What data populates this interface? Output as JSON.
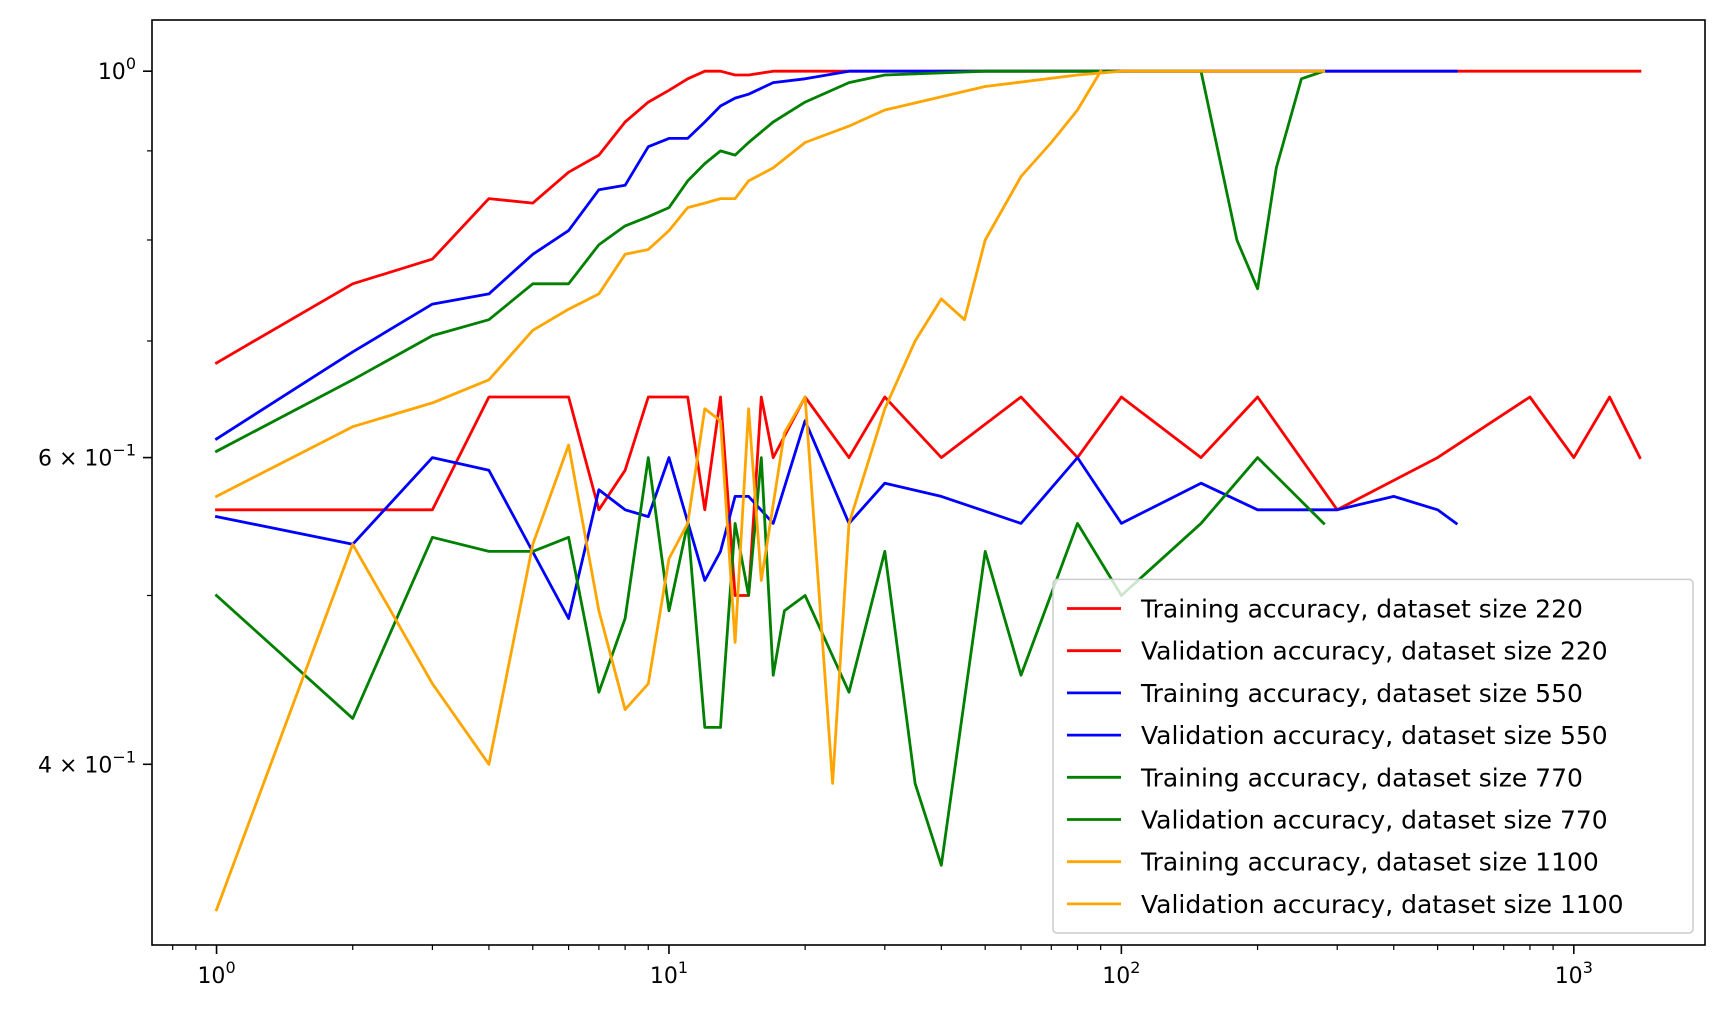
{
  "chart_data": {
    "type": "line",
    "title": "",
    "xlabel": "",
    "ylabel": "",
    "x_scale": "log",
    "y_scale": "log",
    "xlim": [
      0.72,
      1950
    ],
    "ylim": [
      0.315,
      1.07
    ],
    "grid": false,
    "legend_position": "lower right",
    "x_ticks": [
      {
        "value": 1,
        "label_base": "10",
        "label_exp": "0"
      },
      {
        "value": 10,
        "label_base": "10",
        "label_exp": "1"
      },
      {
        "value": 100,
        "label_base": "10",
        "label_exp": "2"
      },
      {
        "value": 1000,
        "label_base": "10",
        "label_exp": "3"
      }
    ],
    "y_ticks": [
      {
        "value": 1.0,
        "label_base": "10",
        "label_exp": "0",
        "label_mult": ""
      },
      {
        "value": 0.6,
        "label_base": "10",
        "label_exp": "−1",
        "label_mult": "6 × "
      },
      {
        "value": 0.4,
        "label_base": "10",
        "label_exp": "−1",
        "label_mult": "4 × "
      }
    ],
    "series": [
      {
        "name": "Training accuracy, dataset size 220",
        "color": "#ff0000",
        "x": [
          1,
          2,
          3,
          4,
          5,
          6,
          7,
          8,
          9,
          10,
          11,
          12,
          13,
          14,
          15,
          17,
          20,
          25,
          30,
          50,
          100,
          1400
        ],
        "y": [
          0.68,
          0.755,
          0.78,
          0.845,
          0.84,
          0.875,
          0.895,
          0.935,
          0.96,
          0.975,
          0.99,
          1.0,
          1.0,
          0.995,
          0.995,
          1.0,
          1.0,
          1.0,
          1.0,
          1.0,
          1.0,
          1.0
        ]
      },
      {
        "name": "Validation accuracy, dataset size 220",
        "color": "#ff0000",
        "x": [
          1,
          3,
          4,
          6,
          7,
          8,
          9,
          11,
          12,
          13,
          14,
          15,
          16,
          17,
          20,
          25,
          30,
          40,
          60,
          80,
          100,
          150,
          200,
          300,
          500,
          800,
          1000,
          1200,
          1400
        ],
        "y": [
          0.56,
          0.56,
          0.65,
          0.65,
          0.56,
          0.59,
          0.65,
          0.65,
          0.56,
          0.65,
          0.5,
          0.5,
          0.65,
          0.6,
          0.65,
          0.6,
          0.65,
          0.6,
          0.65,
          0.6,
          0.65,
          0.6,
          0.65,
          0.56,
          0.6,
          0.65,
          0.6,
          0.65,
          0.6
        ]
      },
      {
        "name": "Training accuracy, dataset size 550",
        "color": "#0000ff",
        "x": [
          1,
          2,
          3,
          4,
          5,
          6,
          7,
          8,
          9,
          10,
          11,
          12,
          13,
          14,
          15,
          17,
          20,
          25,
          30,
          50,
          100,
          300,
          550
        ],
        "y": [
          0.615,
          0.69,
          0.735,
          0.745,
          0.785,
          0.81,
          0.855,
          0.86,
          0.905,
          0.915,
          0.915,
          0.935,
          0.955,
          0.965,
          0.97,
          0.985,
          0.99,
          1.0,
          1.0,
          1.0,
          1.0,
          1.0,
          1.0
        ]
      },
      {
        "name": "Validation accuracy, dataset size 550",
        "color": "#0000ff",
        "x": [
          1,
          2,
          3,
          4,
          6,
          7,
          8,
          9,
          10,
          12,
          13,
          14,
          15,
          17,
          20,
          25,
          30,
          40,
          60,
          80,
          100,
          150,
          200,
          300,
          400,
          500,
          550
        ],
        "y": [
          0.555,
          0.535,
          0.6,
          0.59,
          0.485,
          0.575,
          0.56,
          0.555,
          0.6,
          0.51,
          0.53,
          0.57,
          0.57,
          0.55,
          0.63,
          0.55,
          0.58,
          0.57,
          0.55,
          0.6,
          0.55,
          0.58,
          0.56,
          0.56,
          0.57,
          0.56,
          0.55
        ]
      },
      {
        "name": "Training accuracy, dataset size 770",
        "color": "#008000",
        "x": [
          1,
          2,
          3,
          4,
          5,
          6,
          7,
          8,
          9,
          10,
          11,
          12,
          13,
          14,
          15,
          17,
          20,
          25,
          30,
          50,
          100,
          150,
          180,
          200,
          220,
          250,
          280
        ],
        "y": [
          0.605,
          0.665,
          0.705,
          0.72,
          0.755,
          0.755,
          0.795,
          0.815,
          0.825,
          0.835,
          0.865,
          0.885,
          0.9,
          0.895,
          0.91,
          0.935,
          0.96,
          0.985,
          0.995,
          1.0,
          1.0,
          1.0,
          0.8,
          0.75,
          0.88,
          0.99,
          1.0
        ]
      },
      {
        "name": "Validation accuracy, dataset size 770",
        "color": "#008000",
        "x": [
          1,
          2,
          3,
          4,
          5,
          6,
          7,
          8,
          9,
          10,
          11,
          12,
          13,
          14,
          15,
          16,
          17,
          18,
          20,
          25,
          30,
          35,
          40,
          50,
          60,
          80,
          100,
          150,
          200,
          280
        ],
        "y": [
          0.5,
          0.425,
          0.54,
          0.53,
          0.53,
          0.54,
          0.44,
          0.485,
          0.6,
          0.49,
          0.55,
          0.42,
          0.42,
          0.55,
          0.5,
          0.6,
          0.45,
          0.49,
          0.5,
          0.44,
          0.53,
          0.39,
          0.35,
          0.53,
          0.45,
          0.55,
          0.5,
          0.55,
          0.6,
          0.55
        ]
      },
      {
        "name": "Training accuracy, dataset size 1100",
        "color": "#ffa500",
        "x": [
          1,
          2,
          3,
          4,
          5,
          6,
          7,
          8,
          9,
          10,
          11,
          12,
          13,
          14,
          15,
          17,
          20,
          25,
          30,
          50,
          80,
          100,
          150,
          200,
          280
        ],
        "y": [
          0.57,
          0.625,
          0.645,
          0.665,
          0.71,
          0.73,
          0.745,
          0.785,
          0.79,
          0.81,
          0.835,
          0.84,
          0.845,
          0.845,
          0.865,
          0.88,
          0.91,
          0.93,
          0.95,
          0.98,
          0.995,
          1.0,
          1.0,
          1.0,
          1.0
        ]
      },
      {
        "name": "Validation accuracy, dataset size 1100",
        "color": "#ffa500",
        "x": [
          1,
          2,
          3,
          4,
          5,
          6,
          7,
          8,
          9,
          10,
          11,
          12,
          13,
          14,
          15,
          16,
          18,
          20,
          23,
          25,
          30,
          35,
          40,
          45,
          50,
          60,
          70,
          80,
          90
        ],
        "y": [
          0.33,
          0.535,
          0.445,
          0.4,
          0.535,
          0.61,
          0.49,
          0.43,
          0.445,
          0.525,
          0.55,
          0.64,
          0.63,
          0.47,
          0.64,
          0.51,
          0.62,
          0.65,
          0.39,
          0.55,
          0.64,
          0.7,
          0.74,
          0.72,
          0.8,
          0.87,
          0.91,
          0.95,
          1.0
        ]
      }
    ]
  }
}
